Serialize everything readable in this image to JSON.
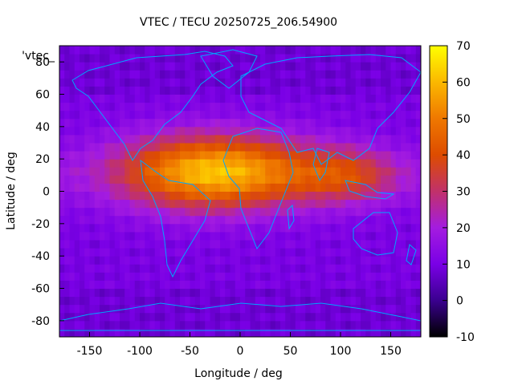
{
  "chart_data": {
    "type": "heatmap",
    "title": "VTEC / TECU 20250725_206.54900",
    "xlabel": "Longitude / deg",
    "ylabel": "Latitude / deg",
    "xlim": [
      -180,
      180
    ],
    "ylim": [
      -90,
      90
    ],
    "x_ticks": [
      -150,
      -100,
      -50,
      0,
      50,
      100,
      150
    ],
    "y_ticks": [
      -80,
      -60,
      -40,
      -20,
      0,
      20,
      40,
      60,
      80
    ],
    "colorbar": {
      "range": [
        -10,
        70
      ],
      "ticks": [
        -10,
        0,
        10,
        20,
        30,
        40,
        50,
        60,
        70
      ],
      "colors": [
        "#000000",
        "#3a008f",
        "#7a00e6",
        "#a41ce0",
        "#c1316a",
        "#dd4c00",
        "#ef7800",
        "#fbb800",
        "#ffff00"
      ]
    },
    "legend_entry": "'vtec_",
    "coastline_color": "#00a6ff",
    "grid": false,
    "field_description_values": {
      "background_level": 10,
      "equatorial_peak": 62,
      "peak_center_lon": -25,
      "peak_center_lat": 12
    }
  }
}
